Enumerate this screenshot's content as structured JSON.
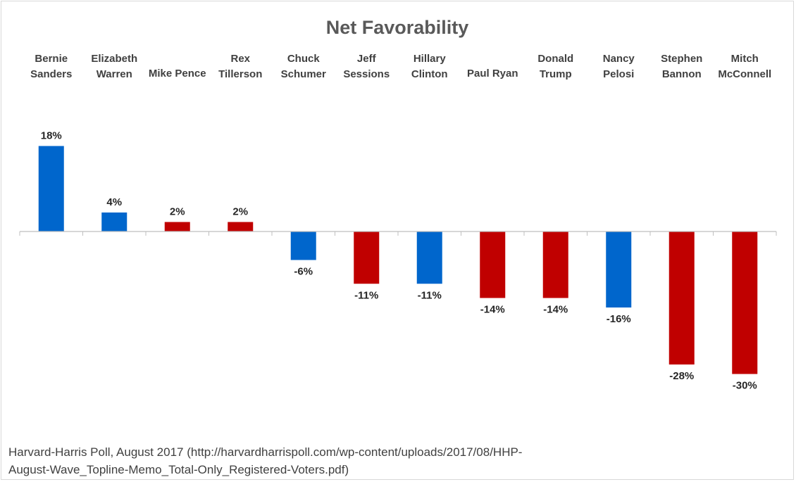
{
  "chart_data": {
    "type": "bar",
    "title": "Net Favorability",
    "categories": [
      [
        "Bernie",
        "Sanders"
      ],
      [
        "Elizabeth",
        "Warren"
      ],
      [
        "Mike Pence"
      ],
      [
        "Rex",
        "Tillerson"
      ],
      [
        "Chuck",
        "Schumer"
      ],
      [
        "Jeff",
        "Sessions"
      ],
      [
        "Hillary",
        "Clinton"
      ],
      [
        "Paul Ryan"
      ],
      [
        "Donald",
        "Trump"
      ],
      [
        "Nancy",
        "Pelosi"
      ],
      [
        "Stephen",
        "Bannon"
      ],
      [
        "Mitch",
        "McConnell"
      ]
    ],
    "values": [
      18,
      4,
      2,
      2,
      -6,
      -11,
      -11,
      -14,
      -14,
      -16,
      -28,
      -30
    ],
    "labels": [
      "18%",
      "4%",
      "2%",
      "2%",
      "-6%",
      "-11%",
      "-11%",
      "-14%",
      "-14%",
      "-16%",
      "-28%",
      "-30%"
    ],
    "party": [
      "D",
      "D",
      "R",
      "R",
      "D",
      "R",
      "D",
      "R",
      "R",
      "D",
      "R",
      "R"
    ],
    "colors": {
      "D": "#0066cc",
      "R": "#c00000",
      "axis": "#bfbfbf"
    },
    "ylim": [
      -37,
      23
    ],
    "xlabel": "",
    "ylabel": "",
    "grid": false,
    "legend": "none"
  },
  "source": {
    "line1": "Harvard-Harris Poll, August 2017 (http://harvardharrispoll.com/wp-content/uploads/2017/08/HHP-",
    "line2": "August-Wave_Topline-Memo_Total-Only_Registered-Voters.pdf)"
  }
}
